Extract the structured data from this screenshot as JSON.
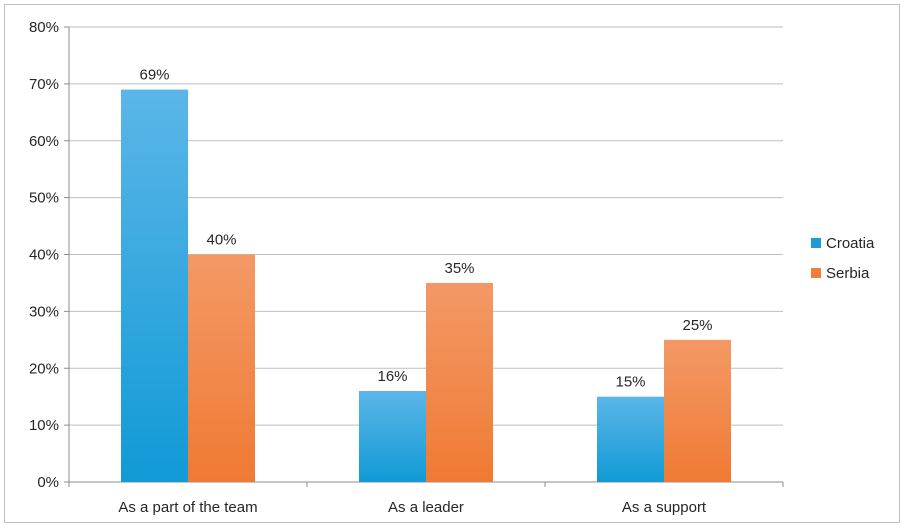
{
  "chart_data": {
    "type": "bar",
    "categories": [
      "As a part of the team",
      "As a leader",
      "As a support"
    ],
    "series": [
      {
        "name": "Croatia",
        "values": [
          69,
          16,
          15
        ],
        "labels": [
          "69%",
          "16%",
          "15%"
        ],
        "color": "#1a9bd7"
      },
      {
        "name": "Serbia",
        "values": [
          40,
          35,
          25
        ],
        "labels": [
          "40%",
          "35%",
          "25%"
        ],
        "color": "#f07f3c"
      }
    ],
    "y_ticks": [
      "0%",
      "10%",
      "20%",
      "30%",
      "40%",
      "50%",
      "60%",
      "70%",
      "80%"
    ],
    "ylim": [
      0,
      80
    ],
    "grid": true,
    "legend": "right",
    "title": "",
    "xlabel": "",
    "ylabel": ""
  }
}
